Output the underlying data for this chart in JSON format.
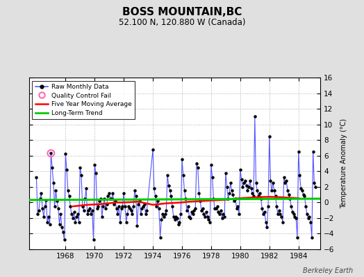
{
  "title": "BOSS MOUNTAIN,BC",
  "subtitle": "52.100 N, 120.880 W (Canada)",
  "ylabel": "Temperature Anomaly (°C)",
  "watermark": "Berkeley Earth",
  "xlim": [
    1965.5,
    1985.5
  ],
  "ylim": [
    -6,
    16
  ],
  "yticks": [
    -6,
    -4,
    -2,
    0,
    2,
    4,
    6,
    8,
    10,
    12,
    14,
    16
  ],
  "xticks": [
    1968,
    1970,
    1972,
    1974,
    1976,
    1978,
    1980,
    1982,
    1984
  ],
  "bg_color": "#e0e0e0",
  "plot_bg_color": "#ffffff",
  "raw_color": "#5555ff",
  "dot_color": "#000000",
  "qc_fail_color": "#ff69b4",
  "moving_avg_color": "#ff0000",
  "trend_color": "#00cc00",
  "trend_slope": 0.008,
  "trend_intercept": 0.32,
  "trend_x0": 1965.5,
  "raw_data": [
    [
      1966.0,
      3.2
    ],
    [
      1966.083,
      -1.5
    ],
    [
      1966.167,
      -1.0
    ],
    [
      1966.25,
      0.5
    ],
    [
      1966.333,
      1.2
    ],
    [
      1966.417,
      -0.8
    ],
    [
      1966.5,
      -1.8
    ],
    [
      1966.583,
      -0.5
    ],
    [
      1966.667,
      0.3
    ],
    [
      1966.75,
      -2.5
    ],
    [
      1966.833,
      -1.8
    ],
    [
      1966.917,
      -2.8
    ],
    [
      1967.0,
      6.3
    ],
    [
      1967.083,
      4.5
    ],
    [
      1967.167,
      2.5
    ],
    [
      1967.25,
      -0.5
    ],
    [
      1967.333,
      1.5
    ],
    [
      1967.417,
      0.2
    ],
    [
      1967.5,
      -0.8
    ],
    [
      1967.583,
      -2.8
    ],
    [
      1967.667,
      -1.5
    ],
    [
      1967.75,
      -3.2
    ],
    [
      1967.833,
      -3.8
    ],
    [
      1967.917,
      -4.8
    ],
    [
      1968.0,
      6.2
    ],
    [
      1968.083,
      4.2
    ],
    [
      1968.167,
      1.5
    ],
    [
      1968.25,
      0.8
    ],
    [
      1968.333,
      -0.5
    ],
    [
      1968.417,
      -1.5
    ],
    [
      1968.5,
      -2.0
    ],
    [
      1968.583,
      -1.2
    ],
    [
      1968.667,
      -2.5
    ],
    [
      1968.75,
      -1.8
    ],
    [
      1968.833,
      -1.5
    ],
    [
      1968.917,
      -2.5
    ],
    [
      1969.0,
      4.5
    ],
    [
      1969.083,
      3.5
    ],
    [
      1969.167,
      -0.5
    ],
    [
      1969.25,
      -1.0
    ],
    [
      1969.333,
      0.5
    ],
    [
      1969.417,
      1.8
    ],
    [
      1969.5,
      -1.5
    ],
    [
      1969.583,
      -1.0
    ],
    [
      1969.667,
      -0.8
    ],
    [
      1969.75,
      -1.5
    ],
    [
      1969.833,
      -1.0
    ],
    [
      1969.917,
      -4.8
    ],
    [
      1970.0,
      4.8
    ],
    [
      1970.083,
      3.8
    ],
    [
      1970.167,
      -0.8
    ],
    [
      1970.25,
      -0.5
    ],
    [
      1970.333,
      0.2
    ],
    [
      1970.417,
      0.5
    ],
    [
      1970.5,
      -1.8
    ],
    [
      1970.583,
      -0.5
    ],
    [
      1970.667,
      0.5
    ],
    [
      1970.75,
      -0.8
    ],
    [
      1970.833,
      -0.2
    ],
    [
      1970.917,
      0.8
    ],
    [
      1971.0,
      1.2
    ],
    [
      1971.083,
      0.5
    ],
    [
      1971.167,
      0.5
    ],
    [
      1971.25,
      1.2
    ],
    [
      1971.333,
      -0.2
    ],
    [
      1971.417,
      0.2
    ],
    [
      1971.5,
      -0.8
    ],
    [
      1971.583,
      -1.5
    ],
    [
      1971.667,
      -0.5
    ],
    [
      1971.75,
      -2.5
    ],
    [
      1971.833,
      -0.8
    ],
    [
      1971.917,
      -0.5
    ],
    [
      1972.0,
      1.2
    ],
    [
      1972.083,
      -0.5
    ],
    [
      1972.167,
      -2.5
    ],
    [
      1972.25,
      -1.5
    ],
    [
      1972.333,
      -0.5
    ],
    [
      1972.417,
      -0.8
    ],
    [
      1972.5,
      -1.0
    ],
    [
      1972.583,
      -1.5
    ],
    [
      1972.667,
      -0.5
    ],
    [
      1972.75,
      1.5
    ],
    [
      1972.833,
      0.8
    ],
    [
      1972.917,
      -3.0
    ],
    [
      1973.0,
      -0.2
    ],
    [
      1973.083,
      0.2
    ],
    [
      1973.167,
      -1.5
    ],
    [
      1973.25,
      -0.8
    ],
    [
      1973.333,
      -0.5
    ],
    [
      1973.417,
      -0.2
    ],
    [
      1973.5,
      -1.5
    ],
    [
      1973.583,
      -1.0
    ],
    [
      1974.0,
      6.8
    ],
    [
      1974.083,
      1.8
    ],
    [
      1974.167,
      0.8
    ],
    [
      1974.25,
      -0.5
    ],
    [
      1974.333,
      0.2
    ],
    [
      1974.417,
      -0.8
    ],
    [
      1974.5,
      -4.5
    ],
    [
      1974.583,
      -2.2
    ],
    [
      1974.667,
      -1.5
    ],
    [
      1974.75,
      -1.8
    ],
    [
      1974.833,
      -1.5
    ],
    [
      1974.917,
      -1.0
    ],
    [
      1975.0,
      3.5
    ],
    [
      1975.083,
      2.2
    ],
    [
      1975.167,
      1.5
    ],
    [
      1975.25,
      0.8
    ],
    [
      1975.333,
      -0.5
    ],
    [
      1975.417,
      -1.8
    ],
    [
      1975.5,
      -2.2
    ],
    [
      1975.583,
      -1.8
    ],
    [
      1975.667,
      -2.0
    ],
    [
      1975.75,
      -2.8
    ],
    [
      1975.833,
      -2.5
    ],
    [
      1975.917,
      -1.5
    ],
    [
      1976.0,
      5.5
    ],
    [
      1976.083,
      3.5
    ],
    [
      1976.167,
      1.5
    ],
    [
      1976.25,
      0.5
    ],
    [
      1976.333,
      -1.0
    ],
    [
      1976.417,
      -0.5
    ],
    [
      1976.5,
      -1.8
    ],
    [
      1976.583,
      -2.0
    ],
    [
      1976.667,
      -1.2
    ],
    [
      1976.75,
      -1.5
    ],
    [
      1976.833,
      -1.0
    ],
    [
      1976.917,
      -0.8
    ],
    [
      1977.0,
      5.0
    ],
    [
      1977.083,
      4.5
    ],
    [
      1977.167,
      1.2
    ],
    [
      1977.25,
      0.2
    ],
    [
      1977.333,
      -1.0
    ],
    [
      1977.417,
      -0.8
    ],
    [
      1977.5,
      -1.5
    ],
    [
      1977.583,
      -1.8
    ],
    [
      1977.667,
      -1.2
    ],
    [
      1977.75,
      -1.8
    ],
    [
      1977.833,
      -2.2
    ],
    [
      1977.917,
      -2.5
    ],
    [
      1978.0,
      4.8
    ],
    [
      1978.083,
      3.2
    ],
    [
      1978.167,
      0.5
    ],
    [
      1978.25,
      -0.8
    ],
    [
      1978.333,
      -0.8
    ],
    [
      1978.417,
      -0.5
    ],
    [
      1978.5,
      -1.2
    ],
    [
      1978.583,
      -1.5
    ],
    [
      1978.667,
      -1.0
    ],
    [
      1978.75,
      -2.0
    ],
    [
      1978.833,
      -1.5
    ],
    [
      1978.917,
      -1.8
    ],
    [
      1979.0,
      3.8
    ],
    [
      1979.083,
      2.0
    ],
    [
      1979.167,
      0.5
    ],
    [
      1979.25,
      1.2
    ],
    [
      1979.333,
      2.5
    ],
    [
      1979.417,
      1.5
    ],
    [
      1979.5,
      1.0
    ],
    [
      1979.583,
      0.2
    ],
    [
      1979.667,
      0.5
    ],
    [
      1979.75,
      -0.8
    ],
    [
      1979.833,
      -0.5
    ],
    [
      1979.917,
      -1.5
    ],
    [
      1980.0,
      4.2
    ],
    [
      1980.083,
      3.0
    ],
    [
      1980.167,
      2.0
    ],
    [
      1980.25,
      2.5
    ],
    [
      1980.333,
      2.8
    ],
    [
      1980.417,
      2.2
    ],
    [
      1980.5,
      1.5
    ],
    [
      1980.583,
      2.0
    ],
    [
      1980.667,
      2.8
    ],
    [
      1980.75,
      1.8
    ],
    [
      1980.833,
      1.2
    ],
    [
      1980.917,
      0.8
    ],
    [
      1981.0,
      11.0
    ],
    [
      1981.083,
      2.5
    ],
    [
      1981.167,
      1.5
    ],
    [
      1981.25,
      0.8
    ],
    [
      1981.333,
      1.2
    ],
    [
      1981.417,
      0.5
    ],
    [
      1981.5,
      -0.8
    ],
    [
      1981.583,
      -1.5
    ],
    [
      1981.667,
      -1.2
    ],
    [
      1981.75,
      -2.5
    ],
    [
      1981.833,
      -3.2
    ],
    [
      1981.917,
      -0.5
    ],
    [
      1982.0,
      8.5
    ],
    [
      1982.083,
      2.8
    ],
    [
      1982.167,
      1.5
    ],
    [
      1982.25,
      2.5
    ],
    [
      1982.333,
      1.5
    ],
    [
      1982.417,
      0.8
    ],
    [
      1982.5,
      -0.5
    ],
    [
      1982.583,
      -1.5
    ],
    [
      1982.667,
      -1.0
    ],
    [
      1982.75,
      -1.5
    ],
    [
      1982.833,
      -1.8
    ],
    [
      1982.917,
      -2.5
    ],
    [
      1983.0,
      3.2
    ],
    [
      1983.083,
      2.5
    ],
    [
      1983.167,
      2.8
    ],
    [
      1983.25,
      1.5
    ],
    [
      1983.333,
      1.0
    ],
    [
      1983.417,
      0.5
    ],
    [
      1983.5,
      -0.5
    ],
    [
      1983.583,
      -1.2
    ],
    [
      1983.667,
      -1.5
    ],
    [
      1983.75,
      -1.8
    ],
    [
      1983.833,
      -2.0
    ],
    [
      1983.917,
      -4.5
    ],
    [
      1984.0,
      6.5
    ],
    [
      1984.083,
      3.5
    ],
    [
      1984.167,
      1.8
    ],
    [
      1984.25,
      1.5
    ],
    [
      1984.333,
      1.0
    ],
    [
      1984.417,
      0.8
    ],
    [
      1984.5,
      -0.5
    ],
    [
      1984.583,
      -1.5
    ],
    [
      1984.667,
      -2.0
    ],
    [
      1984.75,
      -1.8
    ],
    [
      1984.833,
      -2.5
    ],
    [
      1984.917,
      -4.5
    ],
    [
      1985.0,
      6.5
    ],
    [
      1985.083,
      2.5
    ],
    [
      1985.167,
      2.0
    ]
  ],
  "qc_fail_points": [
    [
      1967.0,
      6.3
    ]
  ],
  "moving_avg": [
    [
      1968.5,
      -0.5
    ],
    [
      1969.0,
      -0.4
    ],
    [
      1969.5,
      -0.3
    ],
    [
      1970.0,
      -0.25
    ],
    [
      1970.5,
      -0.2
    ],
    [
      1971.0,
      -0.1
    ],
    [
      1971.5,
      0.0
    ],
    [
      1972.0,
      0.0
    ],
    [
      1972.5,
      0.05
    ],
    [
      1973.0,
      0.1
    ],
    [
      1974.0,
      -0.3
    ],
    [
      1974.5,
      -0.2
    ],
    [
      1975.0,
      -0.1
    ],
    [
      1975.5,
      -0.05
    ],
    [
      1976.0,
      0.0
    ],
    [
      1976.5,
      0.1
    ],
    [
      1977.0,
      0.15
    ],
    [
      1977.5,
      0.2
    ],
    [
      1978.0,
      0.25
    ],
    [
      1978.5,
      0.3
    ],
    [
      1979.0,
      0.35
    ],
    [
      1979.5,
      0.45
    ],
    [
      1980.0,
      0.55
    ],
    [
      1980.5,
      0.6
    ],
    [
      1981.0,
      0.65
    ],
    [
      1981.5,
      0.7
    ],
    [
      1982.0,
      0.72
    ],
    [
      1982.5,
      0.7
    ],
    [
      1983.0,
      0.65
    ],
    [
      1983.5,
      0.6
    ],
    [
      1984.0,
      0.55
    ]
  ]
}
